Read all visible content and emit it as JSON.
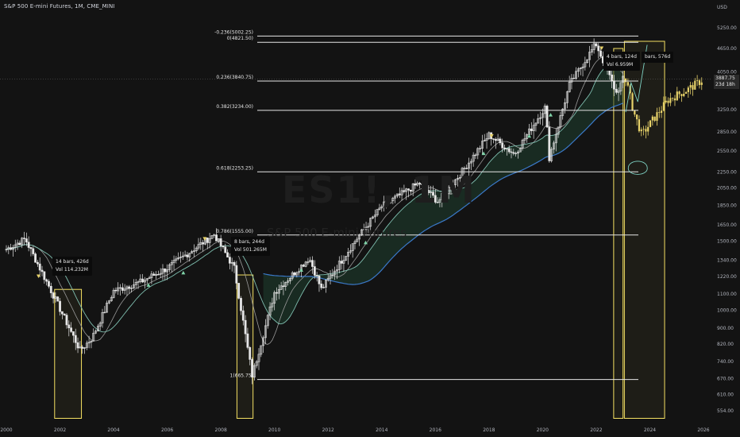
{
  "header": {
    "title": "S&P 500 E-mini Futures, 1M, CME_MINI",
    "currency": "USD",
    "watermark_symbol": "ES1!, 1M",
    "watermark_name": "S&P 500 E-mini Futures"
  },
  "last_price": {
    "price": "3887.75",
    "countdown": "23d 18h"
  },
  "colors": {
    "background": "#131313",
    "candle": "#e6e6e6",
    "candle_recent": "#e8d36a",
    "highlight_box": "#f5e163",
    "fib_line": "#e6e6e6",
    "ma_slow": "#3a78c8",
    "ma_fast": "#7fbfb0",
    "ma_mid": "#9a9a9a",
    "band_fill": "#1f4030",
    "buy_marker": "#7fd3a8",
    "sell_marker": "#e8d36a",
    "cyan_annotation": "#7fd3c4"
  },
  "boxes": [
    {
      "bars_text": "14 bars, 426d",
      "vol_text": "Vol 114.232M"
    },
    {
      "bars_text": "8 bars, 244d",
      "vol_text": "Vol 501.265M"
    },
    {
      "bars_text": "4 bars, 124d",
      "vol_text": "Vol 6.959M"
    },
    {
      "bars_text": "bars, 576d"
    }
  ],
  "chart_data": {
    "type": "candlestick",
    "title": "S&P 500 E-mini Futures, 1M, CME_MINI",
    "y_axis": {
      "scale": "log",
      "unit": "USD",
      "ylim": [
        530,
        6300
      ],
      "ticks": [
        "5250.00",
        "4650.00",
        "4050.00",
        "3887.75",
        "3250.00",
        "2850.00",
        "2550.00",
        "2250.00",
        "2050.00",
        "1850.00",
        "1650.00",
        "1500.00",
        "1340.00",
        "1220.00",
        "1100.00",
        "1000.00",
        "900.00",
        "820.00",
        "740.00",
        "670.00",
        "610.00",
        "554.00"
      ]
    },
    "x_axis": {
      "xlim": [
        2000.0,
        2026.3
      ],
      "ticks": [
        "2000",
        "2002",
        "2004",
        "2006",
        "2008",
        "2010",
        "2012",
        "2014",
        "2016",
        "2018",
        "2020",
        "2022",
        "2024",
        "2026"
      ]
    },
    "fib_levels": [
      {
        "label": "-0.236(5002.25)",
        "value": 5002.25
      },
      {
        "label": "0(4821.50)",
        "value": 4821.5
      },
      {
        "label": "0.236(3840.75)",
        "value": 3840.75
      },
      {
        "label": "0.382(3234.00)",
        "value": 3234.0
      },
      {
        "label": "0.618(2253.25)",
        "value": 2253.25
      },
      {
        "label": "0.786(1555.00)",
        "value": 1555.0
      },
      {
        "label": "1(665.75)",
        "value": 665.75
      }
    ],
    "key_points": [
      {
        "date": 2000.0,
        "close": 1430
      },
      {
        "date": 2000.7,
        "close": 1520
      },
      {
        "date": 2001.7,
        "close": 1110
      },
      {
        "date": 2002.75,
        "close": 790
      },
      {
        "date": 2003.2,
        "close": 850
      },
      {
        "date": 2004.0,
        "close": 1120
      },
      {
        "date": 2005.0,
        "close": 1180
      },
      {
        "date": 2006.0,
        "close": 1280
      },
      {
        "date": 2007.75,
        "close": 1560
      },
      {
        "date": 2008.5,
        "close": 1280
      },
      {
        "date": 2009.17,
        "close": 680
      },
      {
        "date": 2010.0,
        "close": 1110
      },
      {
        "date": 2011.3,
        "close": 1360
      },
      {
        "date": 2011.75,
        "close": 1130
      },
      {
        "date": 2013.0,
        "close": 1500
      },
      {
        "date": 2014.0,
        "close": 1840
      },
      {
        "date": 2015.4,
        "close": 2110
      },
      {
        "date": 2016.1,
        "close": 1890
      },
      {
        "date": 2017.0,
        "close": 2260
      },
      {
        "date": 2018.0,
        "close": 2800
      },
      {
        "date": 2018.95,
        "close": 2500
      },
      {
        "date": 2020.1,
        "close": 3300
      },
      {
        "date": 2020.25,
        "close": 2450
      },
      {
        "date": 2021.0,
        "close": 3760
      },
      {
        "date": 2021.99,
        "close": 4780
      },
      {
        "date": 2022.75,
        "close": 3580
      },
      {
        "date": 2023.0,
        "close": 3880
      }
    ],
    "forecast_points": [
      {
        "date": 2023.1,
        "close": 3900
      },
      {
        "date": 2023.4,
        "close": 3200
      },
      {
        "date": 2023.7,
        "close": 2800
      },
      {
        "date": 2024.1,
        "close": 3050
      },
      {
        "date": 2024.7,
        "close": 3450
      },
      {
        "date": 2025.4,
        "close": 3650
      },
      {
        "date": 2026.0,
        "close": 3880
      }
    ]
  }
}
